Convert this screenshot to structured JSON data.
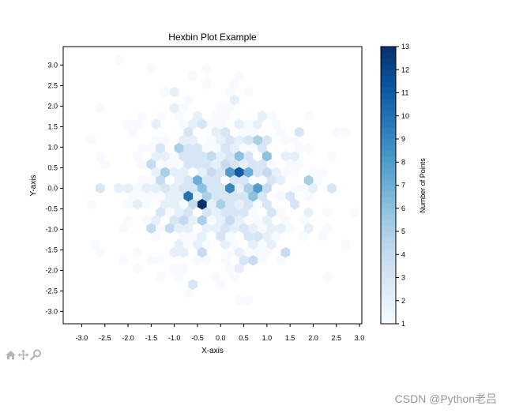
{
  "chart_data": {
    "type": "heatmap",
    "subtype": "hexbin",
    "title": "Hexbin Plot Example",
    "xlabel": "X-axis",
    "ylabel": "Y-axis",
    "xlim": [
      -3.4,
      3.05
    ],
    "ylim": [
      -3.3,
      3.45
    ],
    "xticks": [
      "-3.0",
      "-2.5",
      "-2.0",
      "-1.5",
      "-1.0",
      "-0.5",
      "0.0",
      "0.5",
      "1.0",
      "1.5",
      "2.0",
      "2.5",
      "3.0"
    ],
    "yticks": [
      "-3.0",
      "-2.5",
      "-2.0",
      "-1.5",
      "-1.0",
      "-0.5",
      "0.0",
      "0.5",
      "1.0",
      "1.5",
      "2.0",
      "2.5",
      "3.0"
    ],
    "colorbar": {
      "label": "Number of Points",
      "min": 1,
      "max": 13,
      "ticks": [
        "1",
        "2",
        "3",
        "4",
        "5",
        "6",
        "7",
        "8",
        "9",
        "10",
        "11",
        "12",
        "13"
      ],
      "colormap": "Blues"
    },
    "hex_size_x": 0.2,
    "dense_cells": [
      {
        "x": -0.4,
        "y": -0.45,
        "count": 13
      },
      {
        "x": 0.4,
        "y": 0.45,
        "count": 11
      },
      {
        "x": -0.8,
        "y": -0.25,
        "count": 10
      },
      {
        "x": 0.2,
        "y": -0.05,
        "count": 9
      },
      {
        "x": 0.8,
        "y": -0.05,
        "count": 8
      },
      {
        "x": 0.2,
        "y": 0.35,
        "count": 8
      },
      {
        "x": -0.6,
        "y": 0.25,
        "count": 7
      },
      {
        "x": 0.6,
        "y": 0.35,
        "count": 7
      },
      {
        "x": 0.4,
        "y": 0.85,
        "count": 6
      },
      {
        "x": 1.0,
        "y": 0.85,
        "count": 6
      },
      {
        "x": -1.0,
        "y": 1.0,
        "count": 5
      },
      {
        "x": 1.8,
        "y": 0.1,
        "count": 5
      },
      {
        "x": -0.4,
        "y": 0.05,
        "count": 6
      },
      {
        "x": 0.6,
        "y": -0.25,
        "count": 6
      },
      {
        "x": -0.2,
        "y": -0.25,
        "count": 5
      },
      {
        "x": 0.0,
        "y": -0.45,
        "count": 5
      },
      {
        "x": -0.6,
        "y": -0.45,
        "count": 4
      },
      {
        "x": 0.2,
        "y": -0.75,
        "count": 4
      },
      {
        "x": -1.2,
        "y": 0.45,
        "count": 5
      },
      {
        "x": -0.2,
        "y": 0.45,
        "count": 4
      },
      {
        "x": -0.4,
        "y": -0.75,
        "count": 5
      },
      {
        "x": -0.8,
        "y": -0.75,
        "count": 4
      },
      {
        "x": 1.0,
        "y": -0.05,
        "count": 4
      },
      {
        "x": 1.0,
        "y": 0.45,
        "count": 4
      },
      {
        "x": -1.4,
        "y": 0.1,
        "count": 4
      },
      {
        "x": -0.2,
        "y": 0.85,
        "count": 4
      },
      {
        "x": 0.8,
        "y": 1.2,
        "count": 5
      },
      {
        "x": -1.6,
        "y": 0.55,
        "count": 4
      },
      {
        "x": -1.6,
        "y": -1.0,
        "count": 4
      },
      {
        "x": -1.2,
        "y": -1.0,
        "count": 4
      },
      {
        "x": -0.4,
        "y": -1.5,
        "count": 4
      },
      {
        "x": 0.6,
        "y": -1.75,
        "count": 4
      },
      {
        "x": 1.4,
        "y": -1.5,
        "count": 4
      },
      {
        "x": -2.6,
        "y": -0.05,
        "count": 3
      },
      {
        "x": 2.4,
        "y": -0.05,
        "count": 3
      },
      {
        "x": -0.6,
        "y": -2.25,
        "count": 3
      },
      {
        "x": 0.6,
        "y": 0.05,
        "count": 5
      },
      {
        "x": 0.0,
        "y": 0.65,
        "count": 4
      },
      {
        "x": -0.8,
        "y": 0.65,
        "count": 3
      }
    ],
    "spread_sigma": 0.95,
    "sparse_cell_count": 600
  },
  "toolbar": {
    "icons": [
      "home-icon",
      "pan-icon",
      "zoom-icon"
    ]
  },
  "watermark": "CSDN @Python老吕"
}
